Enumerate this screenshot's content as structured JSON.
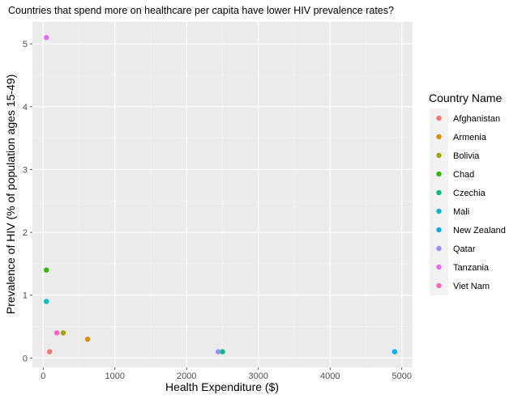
{
  "chart_data": {
    "type": "scatter",
    "title": "Countries that spend more on healthcare per capita have lower HIV prevalence rates?",
    "xlabel": "Health Expenditure ($)",
    "ylabel": "Prevalence of HIV (% of population ages 15-49)",
    "xlim": [
      -150,
      5150
    ],
    "ylim": [
      -0.15,
      5.35
    ],
    "x_ticks": [
      0,
      1000,
      2000,
      3000,
      4000,
      5000
    ],
    "y_ticks": [
      0,
      1,
      2,
      3,
      4,
      5
    ],
    "grid": true,
    "legend_title": "Country Name",
    "legend_position": "right",
    "series": [
      {
        "name": "Afghanistan",
        "color": "#F8766D",
        "x": [
          90
        ],
        "y": [
          0.1
        ]
      },
      {
        "name": "Armenia",
        "color": "#D89000",
        "x": [
          620
        ],
        "y": [
          0.3
        ]
      },
      {
        "name": "Bolivia",
        "color": "#A3A500",
        "x": [
          280
        ],
        "y": [
          0.4
        ]
      },
      {
        "name": "Chad",
        "color": "#39B600",
        "x": [
          45
        ],
        "y": [
          1.4
        ]
      },
      {
        "name": "Czechia",
        "color": "#00BF7D",
        "x": [
          2500
        ],
        "y": [
          0.1
        ]
      },
      {
        "name": "Mali",
        "color": "#00BFC4",
        "x": [
          45
        ],
        "y": [
          0.9
        ]
      },
      {
        "name": "New Zealand",
        "color": "#00B0F6",
        "x": [
          4900
        ],
        "y": [
          0.1
        ]
      },
      {
        "name": "Qatar",
        "color": "#9590FF",
        "x": [
          2440
        ],
        "y": [
          0.1
        ]
      },
      {
        "name": "Tanzania",
        "color": "#E76BF3",
        "x": [
          45
        ],
        "y": [
          5.1
        ]
      },
      {
        "name": "Viet Nam",
        "color": "#FF62BC",
        "x": [
          190
        ],
        "y": [
          0.4
        ]
      }
    ]
  }
}
